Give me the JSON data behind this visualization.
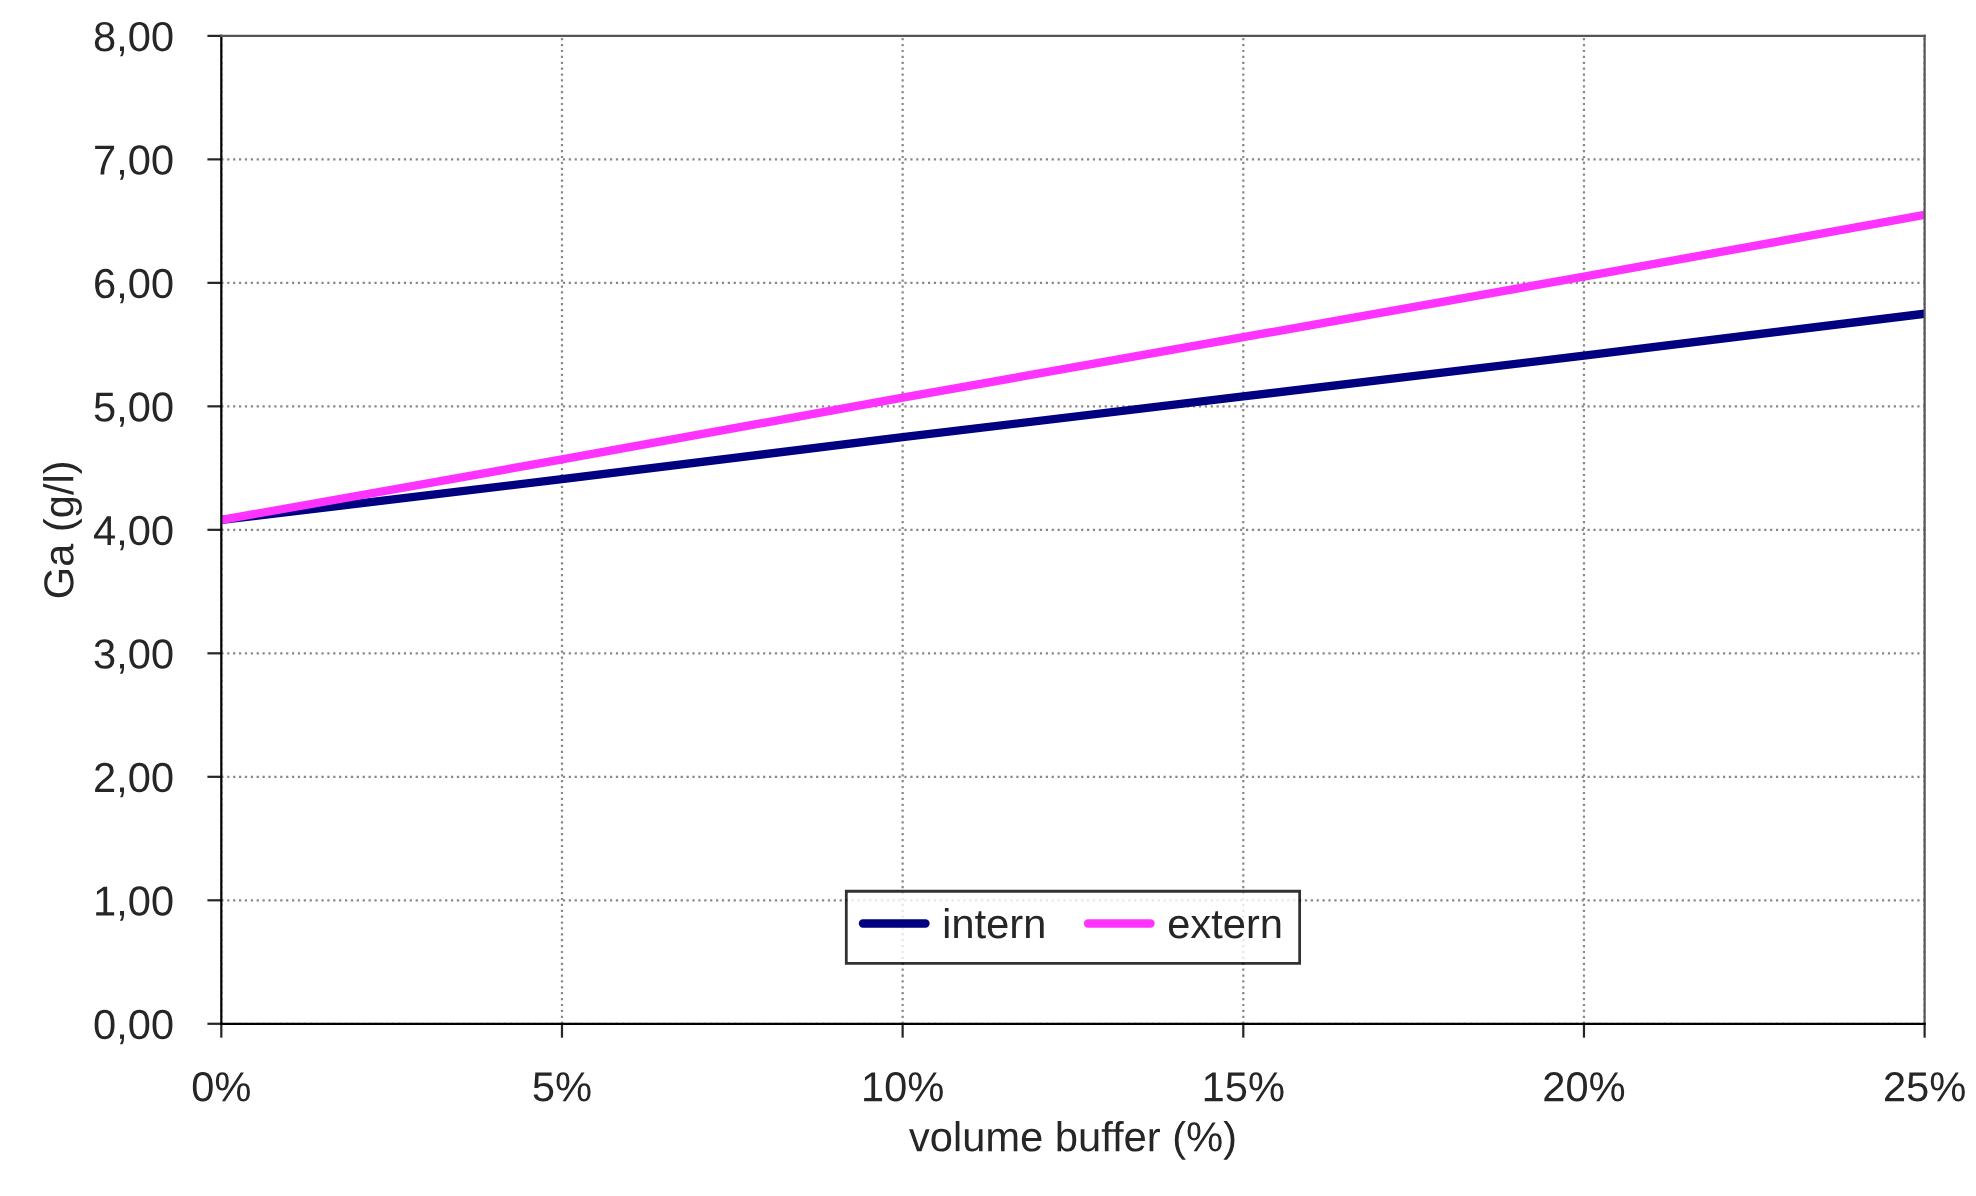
{
  "chart_data": {
    "type": "line",
    "xlabel": "volume buffer (%)",
    "ylabel": "Ga (g/l)",
    "x": [
      0,
      5,
      10,
      15,
      20,
      25
    ],
    "series": [
      {
        "name": "intern",
        "color": "#000080",
        "values": [
          4.08,
          4.41,
          4.75,
          5.08,
          5.41,
          5.75
        ]
      },
      {
        "name": "extern",
        "color": "#ff33ff",
        "values": [
          4.08,
          4.57,
          5.07,
          5.56,
          6.05,
          6.55
        ]
      }
    ],
    "xlim": [
      0,
      25
    ],
    "ylim": [
      0,
      8
    ],
    "xticks": [
      {
        "value": 0,
        "label": "0%"
      },
      {
        "value": 5,
        "label": "5%"
      },
      {
        "value": 10,
        "label": "10%"
      },
      {
        "value": 15,
        "label": "15%"
      },
      {
        "value": 20,
        "label": "20%"
      },
      {
        "value": 25,
        "label": "25%"
      }
    ],
    "yticks": [
      {
        "value": 0,
        "label": "0,00"
      },
      {
        "value": 1,
        "label": "1,00"
      },
      {
        "value": 2,
        "label": "2,00"
      },
      {
        "value": 3,
        "label": "3,00"
      },
      {
        "value": 4,
        "label": "4,00"
      },
      {
        "value": 5,
        "label": "5,00"
      },
      {
        "value": 6,
        "label": "6,00"
      },
      {
        "value": 7,
        "label": "7,00"
      },
      {
        "value": 8,
        "label": "8,00"
      }
    ],
    "grid": true,
    "legend": "bottom",
    "marker": "none",
    "line_style": "solid"
  }
}
